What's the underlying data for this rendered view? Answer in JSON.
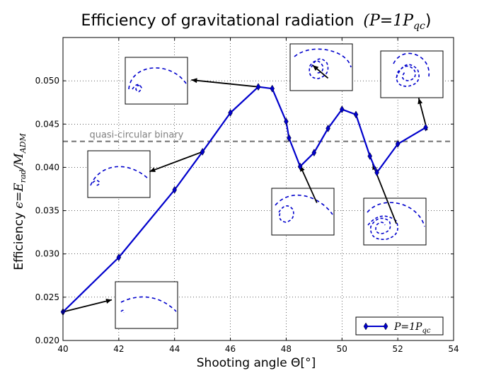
{
  "chart_data": {
    "type": "line",
    "title": "Efficiency of gravitational radiation",
    "title_math": "(P=1P",
    "title_math_sub": "qc",
    "title_math_end": ")",
    "xlabel": "Shooting angle Θ[°]",
    "ylabel_prefix": "Efficiency ",
    "ylabel_math": "ϵ=E",
    "ylabel_sub1": "rad",
    "ylabel_mid": "/M",
    "ylabel_sub2": "ADM",
    "xlim": [
      40,
      54
    ],
    "ylim": [
      0.02,
      0.055
    ],
    "xticks": [
      40,
      42,
      44,
      46,
      48,
      50,
      52,
      54
    ],
    "yticks": [
      0.02,
      0.025,
      0.03,
      0.035,
      0.04,
      0.045,
      0.05
    ],
    "ytick_labels": [
      "0.020",
      "0.025",
      "0.030",
      "0.035",
      "0.040",
      "0.045",
      "0.050"
    ],
    "grid": true,
    "series": [
      {
        "name": "P=1Pqc",
        "legend_main": "P=1P",
        "legend_sub": "qc",
        "color": "#0000cc",
        "marker": "diamond",
        "x": [
          40,
          42,
          44,
          45,
          46,
          47,
          47.5,
          48,
          48.1,
          48.5,
          49,
          49.5,
          50,
          50.5,
          51,
          51.25,
          52,
          53
        ],
        "y": [
          0.0233,
          0.0296,
          0.0374,
          0.0418,
          0.0463,
          0.0493,
          0.0491,
          0.0453,
          0.0434,
          0.0401,
          0.0417,
          0.0445,
          0.0467,
          0.0461,
          0.0413,
          0.0394,
          0.0427,
          0.0446
        ]
      }
    ],
    "reference_line": {
      "label": "quasi-circular binary",
      "y": 0.043,
      "color": "#808080"
    },
    "legend_position": "lower-right"
  }
}
